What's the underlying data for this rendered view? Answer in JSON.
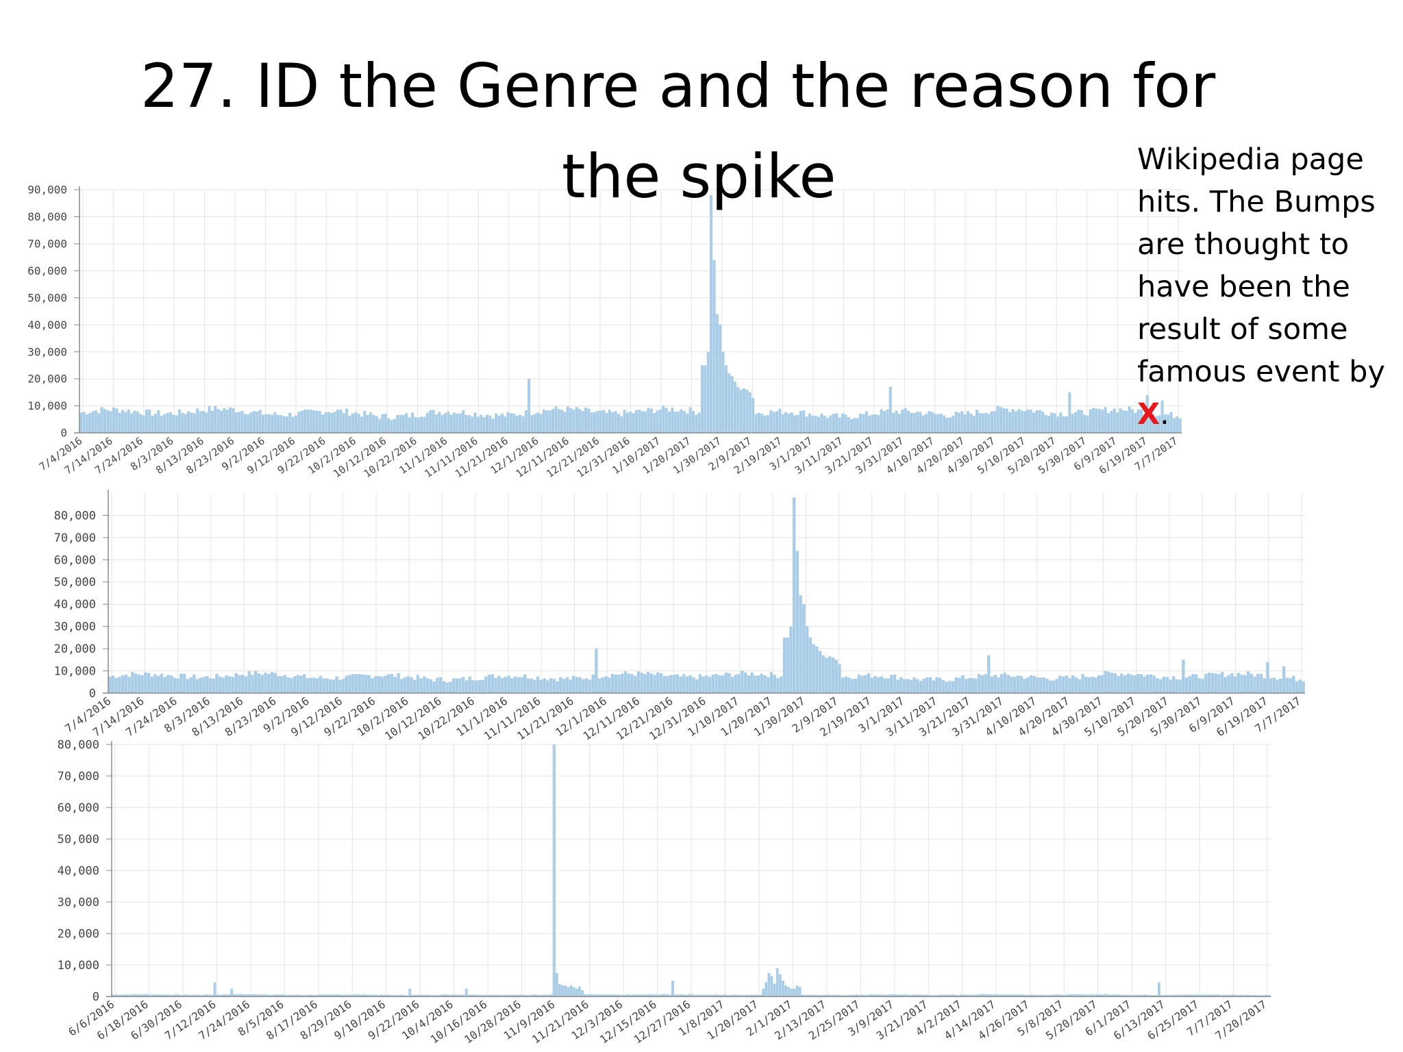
{
  "title": {
    "line1": "27. ID the Genre and the reason for",
    "line2": "the spike"
  },
  "note": {
    "text": "Wikipedia page hits. The Bumps are thought to have been the result of some famous event by ",
    "mark": "X",
    "end": ".",
    "mark_color": "#e8171c"
  },
  "colors": {
    "bar": "#a9cde6",
    "grid": "#e3e3e3",
    "axis": "#888888"
  },
  "chart_data": [
    {
      "type": "bar",
      "ylim": [
        0,
        90000
      ],
      "yticks": [
        "0",
        "10,000",
        "20,000",
        "30,000",
        "40,000",
        "50,000",
        "60,000",
        "70,000",
        "80,000",
        "90,000"
      ],
      "xticks": [
        "7/4/2016",
        "7/14/2016",
        "7/24/2016",
        "8/3/2016",
        "8/13/2016",
        "8/23/2016",
        "9/2/2016",
        "9/12/2016",
        "9/22/2016",
        "10/2/2016",
        "10/12/2016",
        "10/22/2016",
        "11/1/2016",
        "11/11/2016",
        "11/21/2016",
        "12/1/2016",
        "12/11/2016",
        "12/21/2016",
        "12/31/2016",
        "1/10/2017",
        "1/20/2017",
        "1/30/2017",
        "2/9/2017",
        "2/19/2017",
        "3/1/2017",
        "3/11/2017",
        "3/21/2017",
        "3/31/2017",
        "4/10/2017",
        "4/20/2017",
        "4/30/2017",
        "5/10/2017",
        "5/20/2017",
        "5/30/2017",
        "6/9/2017",
        "6/19/2017",
        "7/7/2017"
      ],
      "n_days": 369,
      "baseline": 7500,
      "peaks": [
        [
          150,
          20000
        ],
        [
          271,
          17000
        ],
        [
          331,
          15000
        ],
        [
          357,
          14000
        ],
        [
          362,
          12000
        ]
      ],
      "spike": {
        "start": 208,
        "values": [
          25000,
          25000,
          30000,
          88000,
          64000,
          44000,
          40000,
          30000,
          25000,
          22000,
          21000,
          19000,
          17000,
          16000,
          16500,
          16000,
          15000,
          13000
        ]
      }
    },
    {
      "type": "bar",
      "ylim": [
        0,
        90000
      ],
      "yticks": [
        "0",
        "10,000",
        "20,000",
        "30,000",
        "40,000",
        "50,000",
        "60,000",
        "70,000",
        "80,000"
      ],
      "xticks": [
        "7/4/2016",
        "7/14/2016",
        "7/24/2016",
        "8/3/2016",
        "8/13/2016",
        "8/23/2016",
        "9/2/2016",
        "9/12/2016",
        "9/22/2016",
        "10/2/2016",
        "10/12/2016",
        "10/22/2016",
        "11/1/2016",
        "11/11/2016",
        "11/21/2016",
        "12/1/2016",
        "12/11/2016",
        "12/21/2016",
        "12/31/2016",
        "1/10/2017",
        "1/20/2017",
        "1/30/2017",
        "2/9/2017",
        "2/19/2017",
        "3/1/2017",
        "3/11/2017",
        "3/21/2017",
        "3/31/2017",
        "4/10/2017",
        "4/20/2017",
        "4/30/2017",
        "5/10/2017",
        "5/20/2017",
        "5/30/2017",
        "6/9/2017",
        "6/19/2017",
        "7/7/2017"
      ],
      "n_days": 369,
      "baseline": 7500,
      "peaks": [
        [
          150,
          20000
        ],
        [
          271,
          17000
        ],
        [
          331,
          15000
        ],
        [
          357,
          14000
        ],
        [
          362,
          12000
        ]
      ],
      "spike": {
        "start": 208,
        "values": [
          25000,
          25000,
          30000,
          88000,
          64000,
          44000,
          40000,
          30000,
          25000,
          22000,
          21000,
          19000,
          17000,
          16000,
          16500,
          16000,
          15000,
          13000
        ]
      }
    },
    {
      "type": "bar",
      "ylim": [
        0,
        80000
      ],
      "yticks": [
        "0",
        "10,000",
        "20,000",
        "30,000",
        "40,000",
        "50,000",
        "60,000",
        "70,000",
        "80,000"
      ],
      "xticks": [
        "6/6/2016",
        "6/18/2016",
        "6/30/2016",
        "7/12/2016",
        "7/24/2016",
        "8/5/2016",
        "8/17/2016",
        "8/29/2016",
        "9/10/2016",
        "9/22/2016",
        "10/4/2016",
        "10/16/2016",
        "10/28/2016",
        "11/9/2016",
        "11/21/2016",
        "12/3/2016",
        "12/15/2016",
        "12/27/2016",
        "1/8/2017",
        "1/20/2017",
        "2/1/2017",
        "2/13/2017",
        "2/25/2017",
        "3/9/2017",
        "3/21/2017",
        "4/2/2017",
        "4/14/2017",
        "4/26/2017",
        "5/8/2017",
        "5/20/2017",
        "6/1/2017",
        "6/13/2017",
        "6/25/2017",
        "7/7/2017",
        "7/20/2017"
      ],
      "n_days": 410,
      "baseline": 600,
      "peaks": [
        [
          36,
          4500
        ],
        [
          42,
          2500
        ],
        [
          105,
          2500
        ],
        [
          125,
          2500
        ],
        [
          198,
          5000
        ],
        [
          370,
          4500
        ]
      ],
      "spike": {
        "start": 156,
        "values": [
          80000,
          7500,
          4000,
          3500,
          3500,
          3000,
          3500,
          3000,
          2500,
          3200,
          2000
        ]
      },
      "spike2": {
        "start": 230,
        "values": [
          2500,
          4500,
          7500,
          6500,
          4000,
          9000,
          7000,
          5000,
          3500,
          3000,
          2500,
          2500,
          3500,
          3000
        ]
      }
    }
  ]
}
